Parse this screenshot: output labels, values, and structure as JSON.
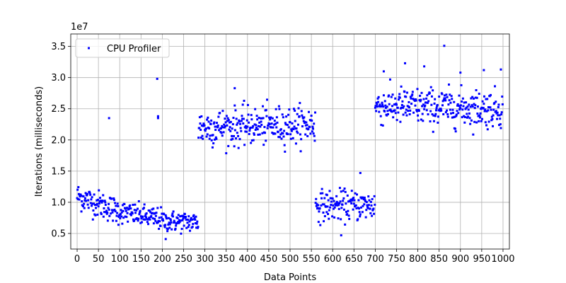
{
  "chart_data": {
    "type": "scatter",
    "title": "",
    "xlabel": "Data Points",
    "ylabel": "Iterations (milliseconds)",
    "y_offset_label": "1e7",
    "xlim": [
      -15,
      1015
    ],
    "ylim": [
      2500000,
      37000000
    ],
    "xticks": [
      0,
      50,
      100,
      150,
      200,
      250,
      300,
      350,
      400,
      450,
      500,
      550,
      600,
      650,
      700,
      750,
      800,
      850,
      900,
      950,
      1000
    ],
    "xtick_labels": [
      "0",
      "50",
      "100",
      "150",
      "200",
      "250",
      "300",
      "350",
      "400",
      "450",
      "500",
      "550",
      "600",
      "650",
      "700",
      "750",
      "800",
      "850",
      "900",
      "950",
      "1000"
    ],
    "yticks": [
      5000000,
      10000000,
      15000000,
      20000000,
      25000000,
      30000000,
      35000000
    ],
    "ytick_labels": [
      "0.5",
      "1.0",
      "1.5",
      "2.0",
      "2.5",
      "3.0",
      "3.5"
    ],
    "grid": true,
    "legend_position": "upper-left",
    "series": [
      {
        "name": "CPU Profiler",
        "color": "#0000ff",
        "marker": "square",
        "segments": [
          {
            "x_start": 0,
            "x_end": 100,
            "mean_start": 11000000,
            "mean_end": 8500000,
            "spread": 1800000
          },
          {
            "x_start": 100,
            "x_end": 200,
            "mean_start": 8500000,
            "mean_end": 7200000,
            "spread": 1500000
          },
          {
            "x_start": 200,
            "x_end": 285,
            "mean_start": 7000000,
            "mean_end": 6800000,
            "spread": 1400000
          },
          {
            "x_start": 285,
            "x_end": 560,
            "mean_start": 22000000,
            "mean_end": 22500000,
            "spread": 2500000
          },
          {
            "x_start": 560,
            "x_end": 700,
            "mean_start": 9500000,
            "mean_end": 9500000,
            "spread": 2000000
          },
          {
            "x_start": 700,
            "x_end": 1000,
            "mean_start": 25500000,
            "mean_end": 25000000,
            "spread": 2500000
          }
        ],
        "outliers": [
          {
            "x": 75,
            "y": 23500000
          },
          {
            "x": 188,
            "y": 29800000
          },
          {
            "x": 190,
            "y": 23800000
          },
          {
            "x": 190,
            "y": 23500000
          },
          {
            "x": 370,
            "y": 28300000
          },
          {
            "x": 770,
            "y": 32300000
          },
          {
            "x": 815,
            "y": 31800000
          },
          {
            "x": 862,
            "y": 35100000
          },
          {
            "x": 900,
            "y": 30800000
          },
          {
            "x": 955,
            "y": 31200000
          },
          {
            "x": 995,
            "y": 31300000
          },
          {
            "x": 720,
            "y": 31000000
          },
          {
            "x": 665,
            "y": 14700000
          },
          {
            "x": 620,
            "y": 4700000
          },
          {
            "x": 208,
            "y": 4100000
          }
        ]
      }
    ]
  }
}
